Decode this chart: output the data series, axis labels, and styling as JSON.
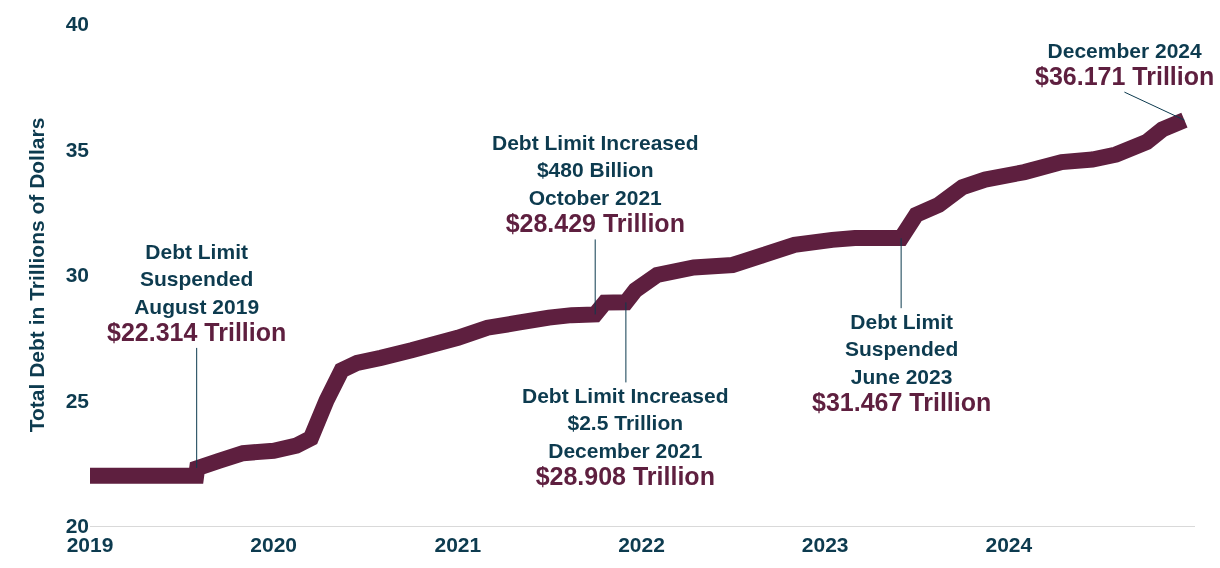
{
  "chart_data": {
    "type": "line",
    "ylabel": "Total Debt in Trillions of Dollars",
    "x": [
      "2019-01-01",
      "2019-02-01",
      "2019-03-15",
      "2019-05-01",
      "2019-07-31",
      "2019-08-02",
      "2019-09-15",
      "2019-11-01",
      "2020-01-01",
      "2020-02-15",
      "2020-03-15",
      "2020-04-15",
      "2020-05-15",
      "2020-06-15",
      "2020-08-01",
      "2020-10-01",
      "2021-01-01",
      "2021-03-01",
      "2021-05-01",
      "2021-07-01",
      "2021-08-15",
      "2021-10-01",
      "2021-10-20",
      "2021-12-01",
      "2021-12-20",
      "2022-02-01",
      "2022-04-15",
      "2022-07-01",
      "2022-09-01",
      "2022-11-01",
      "2023-01-15",
      "2023-03-01",
      "2023-06-01",
      "2023-07-01",
      "2023-08-15",
      "2023-10-01",
      "2023-11-15",
      "2024-02-01",
      "2024-04-15",
      "2024-06-15",
      "2024-08-01",
      "2024-10-01",
      "2024-11-01",
      "2024-12-15"
    ],
    "series": [
      {
        "color": "#5e1f3f",
        "values": [
          22.0,
          22.0,
          22.0,
          22.0,
          22.0,
          22.3,
          22.6,
          22.9,
          23.0,
          23.2,
          23.5,
          25.0,
          26.2,
          26.5,
          26.7,
          27.0,
          27.5,
          27.9,
          28.1,
          28.3,
          28.4,
          28.43,
          28.9,
          28.91,
          29.4,
          30.0,
          30.3,
          30.4,
          30.8,
          31.2,
          31.4,
          31.47,
          31.47,
          32.4,
          32.8,
          33.5,
          33.8,
          34.1,
          34.5,
          34.6,
          34.8,
          35.3,
          35.8,
          36.17
        ]
      }
    ],
    "xlim": [
      "2019-01-01",
      "2025-01-05"
    ],
    "xticks": [
      {
        "value": "2019-01-01",
        "label": "2019"
      },
      {
        "value": "2020-01-01",
        "label": "2020"
      },
      {
        "value": "2021-01-01",
        "label": "2021"
      },
      {
        "value": "2022-01-01",
        "label": "2022"
      },
      {
        "value": "2023-01-01",
        "label": "2023"
      },
      {
        "value": "2024-01-01",
        "label": "2024"
      }
    ],
    "ylim": [
      20,
      40
    ],
    "yticks": [
      20,
      25,
      30,
      35,
      40
    ],
    "legend": false,
    "marker": "none",
    "line_style": "solid",
    "annotations": [
      {
        "text": "Debt Limit\nSuspended\nAugust 2019\n$22.314 Trillion",
        "x": "2019-08-01",
        "y": 22.314
      },
      {
        "text": "Debt Limit Increased\n$480 Billion\nOctober 2021\n$28.429 Trillion",
        "x": "2021-10-01",
        "y": 28.429
      },
      {
        "text": "Debt Limit Increased\n$2.5 Trillion\nDecember 2021\n$28.908 Trillion",
        "x": "2021-12-01",
        "y": 28.908
      },
      {
        "text": "Debt Limit\nSuspended\nJune 2023\n$31.467 Trillion",
        "x": "2023-06-01",
        "y": 31.467
      },
      {
        "text": "December 2024\n$36.171 Trillion",
        "x": "2024-12-15",
        "y": 36.171
      }
    ]
  }
}
